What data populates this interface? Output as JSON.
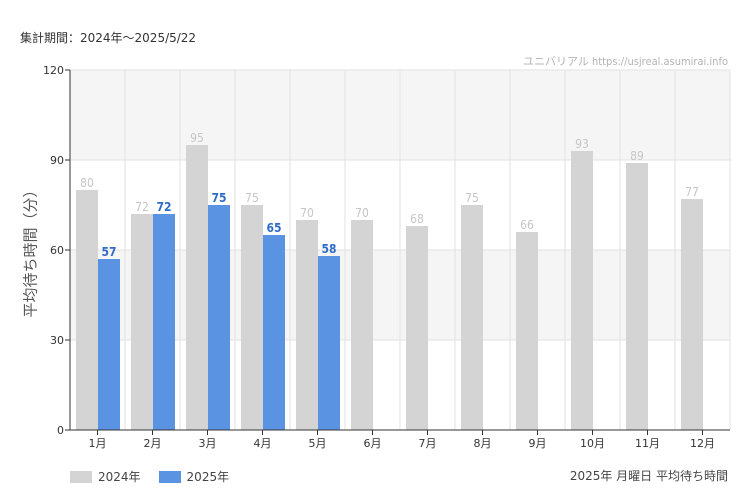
{
  "header": {
    "period_label": "集計期間：2024年～2025/5/22",
    "watermark": "ユニバリアル  https://usjreal.asumirai.info"
  },
  "footer": {
    "note": "2025年 月曜日 平均待ち時間"
  },
  "colors": {
    "series_2024": "#d4d4d4",
    "series_2025": "#5b93e3",
    "label_2024": "#c6c6c6",
    "label_2025": "#2e6cc7",
    "band": "#f5f5f5",
    "grid": "#e2e2e2",
    "axis": "#333333"
  },
  "chart_data": {
    "type": "bar",
    "ylabel": "平均待ち時間（分）",
    "xlabel": "",
    "ylim": [
      0,
      120
    ],
    "yticks": [
      0,
      30,
      60,
      90,
      120
    ],
    "grid": true,
    "legend_position": "bottom-left",
    "categories": [
      "1月",
      "2月",
      "3月",
      "4月",
      "5月",
      "6月",
      "7月",
      "8月",
      "9月",
      "10月",
      "11月",
      "12月"
    ],
    "series": [
      {
        "name": "2024年",
        "values": [
          80,
          72,
          95,
          75,
          70,
          70,
          68,
          75,
          66,
          93,
          89,
          77
        ]
      },
      {
        "name": "2025年",
        "values": [
          57,
          72,
          75,
          65,
          58,
          null,
          null,
          null,
          null,
          null,
          null,
          null
        ]
      }
    ]
  }
}
